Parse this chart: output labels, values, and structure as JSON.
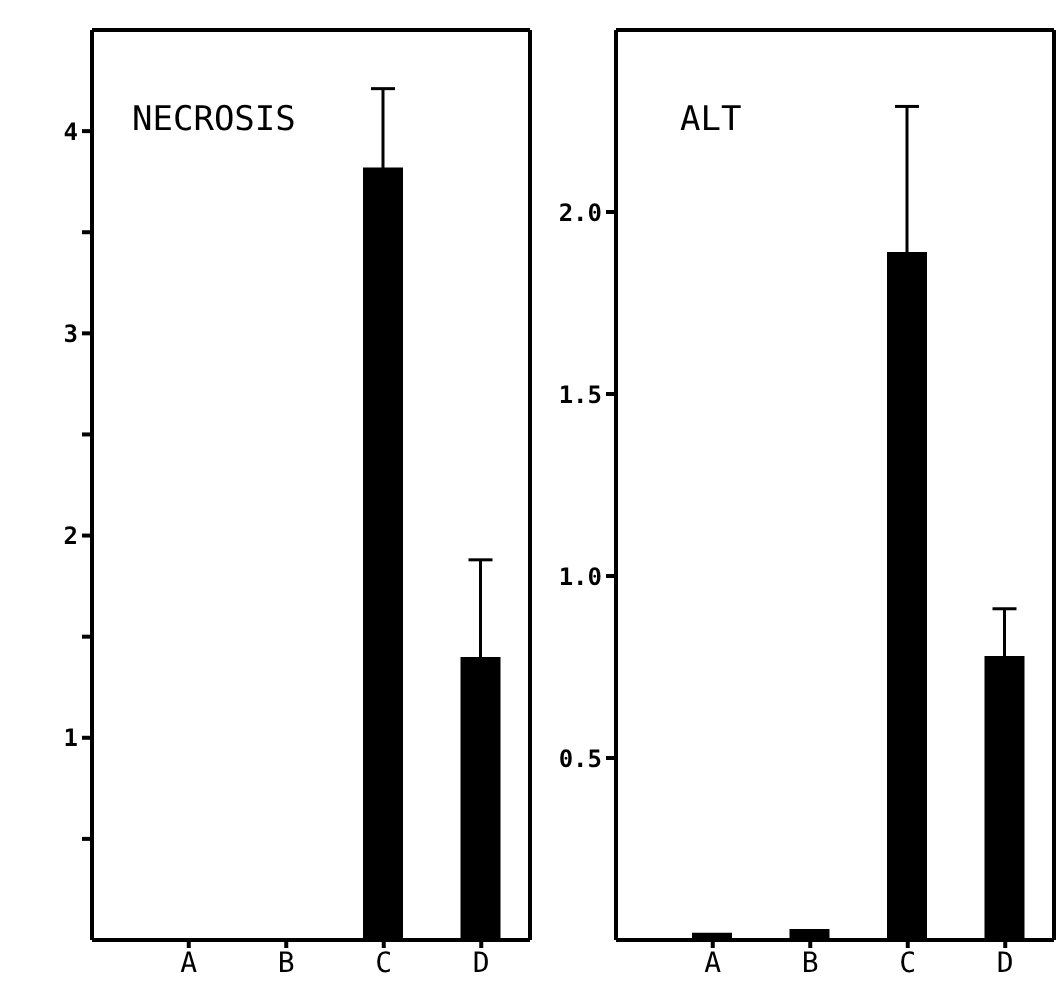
{
  "chart_data": [
    {
      "type": "bar",
      "title": "NECROSIS",
      "categories": [
        "A",
        "B",
        "C",
        "D"
      ],
      "values": [
        0,
        0,
        3.82,
        1.4
      ],
      "errors": [
        null,
        null,
        0.39,
        0.48
      ],
      "color": "#000000",
      "ylim": [
        0,
        4.5
      ],
      "yticks": [
        {
          "value": 0.5,
          "label": null
        },
        1,
        {
          "value": 1.5,
          "label": null
        },
        2,
        {
          "value": 2.5,
          "label": null
        },
        3,
        {
          "value": 3.5,
          "label": null
        },
        4
      ],
      "grid": false,
      "legend": false
    },
    {
      "type": "bar",
      "title": "ALT",
      "categories": [
        "A",
        "B",
        "C",
        "D"
      ],
      "values": [
        0.02,
        0.03,
        1.89,
        0.78
      ],
      "errors": [
        null,
        null,
        0.4,
        0.13
      ],
      "color": "#000000",
      "ylim": [
        0,
        2.5
      ],
      "yticks": [
        {
          "value": 0.5,
          "label": "0.5"
        },
        {
          "value": 1,
          "label": "1.0"
        },
        {
          "value": 1.5,
          "label": "1.5"
        },
        {
          "value": 2,
          "label": "2.0"
        }
      ],
      "grid": false,
      "legend": false
    }
  ]
}
